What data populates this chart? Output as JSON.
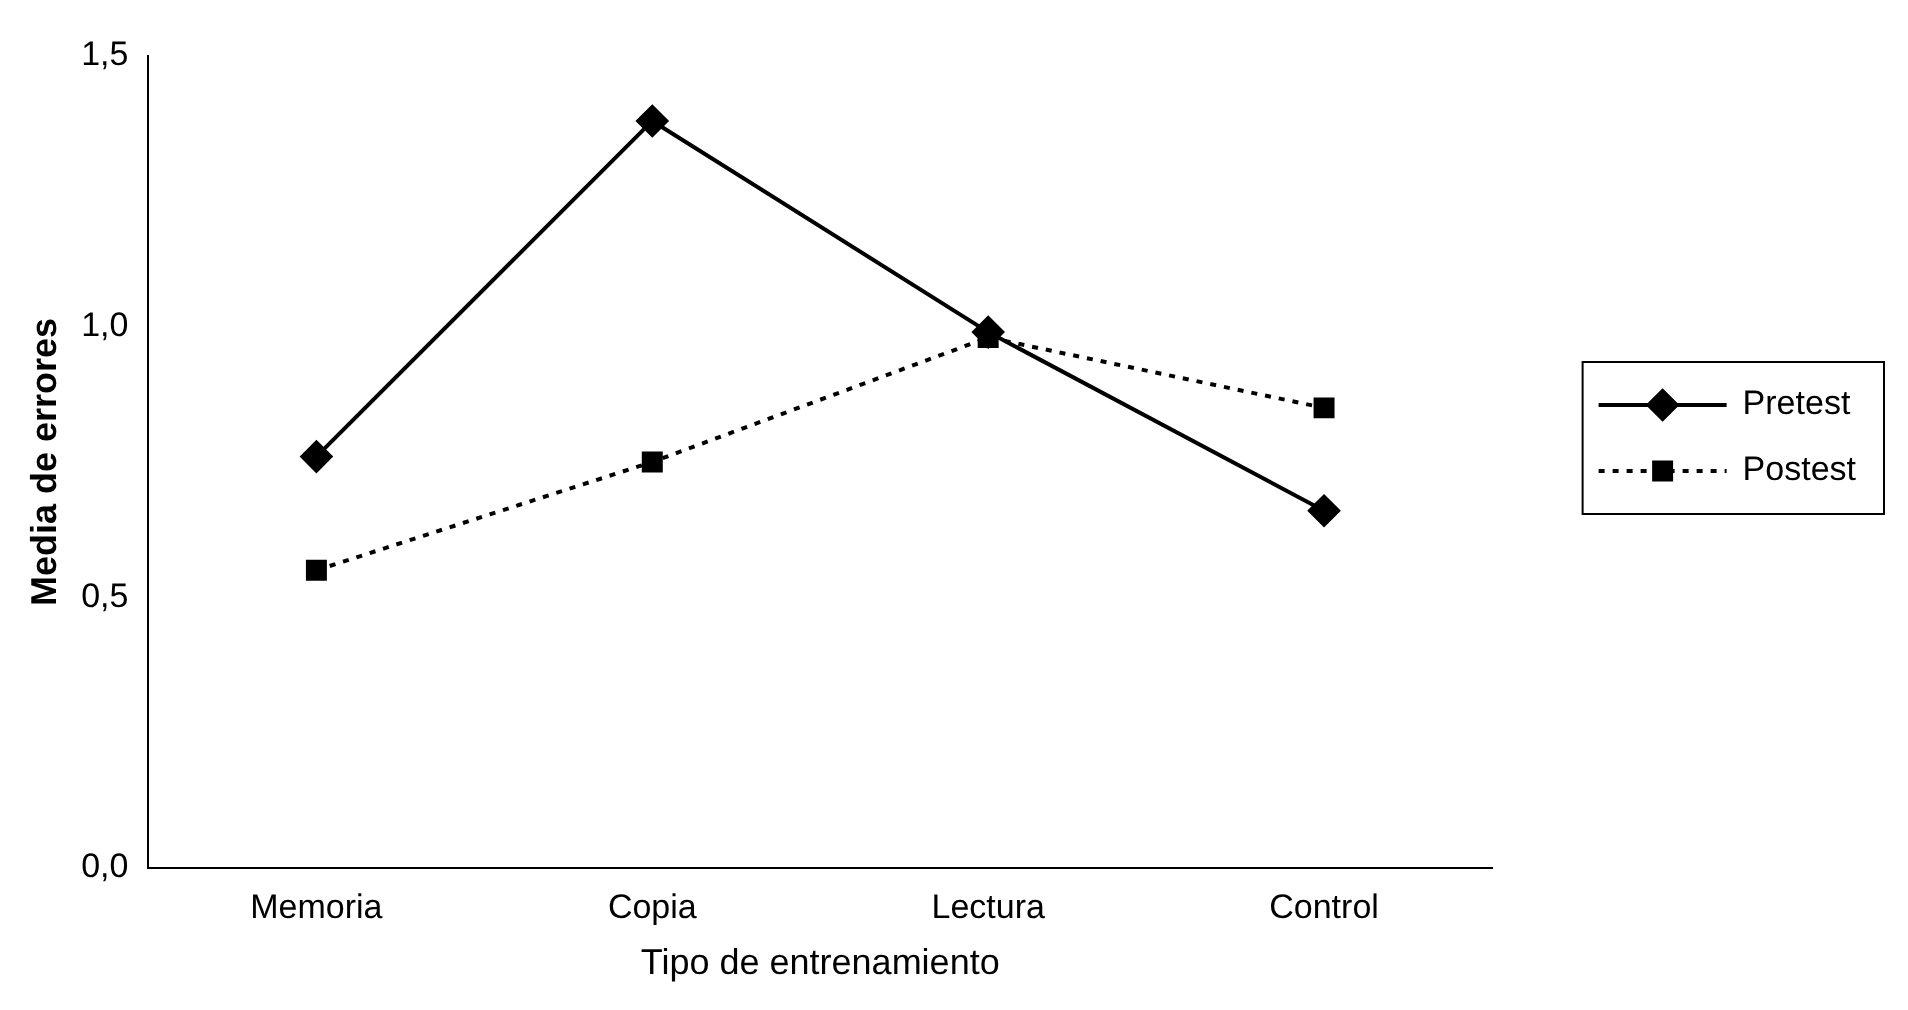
{
  "chart_data": {
    "type": "line",
    "xlabel": "Tipo de entrenamiento",
    "ylabel": "Media de errores",
    "categories": [
      "Memoria",
      "Copia",
      "Lectura",
      "Control"
    ],
    "series": [
      {
        "name": "Pretest",
        "color": "#000000",
        "values": [
          0.76,
          1.38,
          0.99,
          0.66
        ],
        "marker": "diamond",
        "line_style": "solid"
      },
      {
        "name": "Postest",
        "color": "#000000",
        "values": [
          0.55,
          0.75,
          0.98,
          0.85
        ],
        "marker": "square",
        "line_style": "dotted"
      }
    ],
    "ylim": [
      0,
      1.5
    ],
    "yticks": [
      {
        "value": 0,
        "label": "0,0"
      },
      {
        "value": 0.5,
        "label": "0,5"
      },
      {
        "value": 1,
        "label": "1,0"
      },
      {
        "value": 1.5,
        "label": "1,5"
      }
    ],
    "grid": false,
    "legend": "right"
  }
}
